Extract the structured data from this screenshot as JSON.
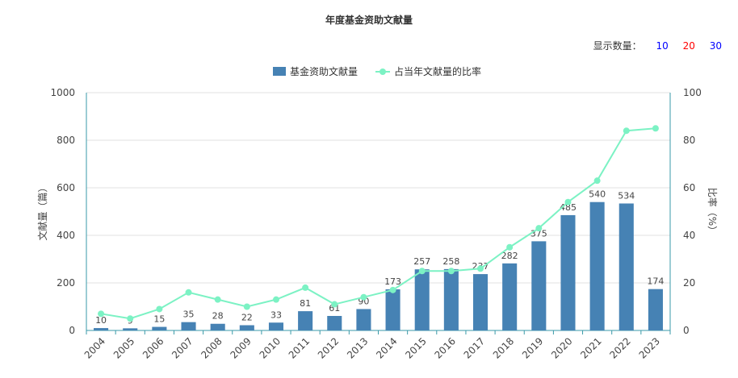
{
  "title": "年度基金资助文献量",
  "count_selector": {
    "label": "显示数量：",
    "options": [
      "10",
      "20",
      "30"
    ],
    "colors": [
      "#0000ff",
      "#ff0000",
      "#0000ff"
    ]
  },
  "legend": {
    "bar": "基金资助文献量",
    "line": "占当年文献量的比率"
  },
  "colors": {
    "bar": "#4682b4",
    "line": "#7cf2c4",
    "axis": "#3a9aa8",
    "grid": "#e0e0e0"
  },
  "chart_data": {
    "type": "bar",
    "categories": [
      "2004",
      "2005",
      "2006",
      "2007",
      "2008",
      "2009",
      "2010",
      "2011",
      "2012",
      "2013",
      "2014",
      "2015",
      "2016",
      "2017",
      "2018",
      "2019",
      "2020",
      "2021",
      "2022",
      "2023"
    ],
    "series": [
      {
        "name": "基金资助文献量",
        "type": "bar",
        "axis": "left",
        "values": [
          10,
          9,
          15,
          35,
          28,
          22,
          33,
          81,
          61,
          90,
          173,
          257,
          258,
          237,
          282,
          375,
          485,
          540,
          534,
          174
        ]
      },
      {
        "name": "占当年文献量的比率",
        "type": "line",
        "axis": "right",
        "values": [
          7,
          5,
          9,
          16,
          13,
          10,
          13,
          18,
          11,
          14,
          17,
          25,
          25,
          26,
          35,
          43,
          54,
          63,
          84,
          85
        ]
      }
    ],
    "ylabel": "文献量（篇）",
    "y2label": "比率（%）",
    "ylim": [
      0,
      1000
    ],
    "y2lim": [
      0,
      100
    ],
    "yticks": [
      "0",
      "200",
      "400",
      "600",
      "800",
      "1000"
    ],
    "y2ticks": [
      "0",
      "20",
      "40",
      "60",
      "80",
      "100"
    ],
    "grid": true,
    "legend_position": "top-center"
  }
}
